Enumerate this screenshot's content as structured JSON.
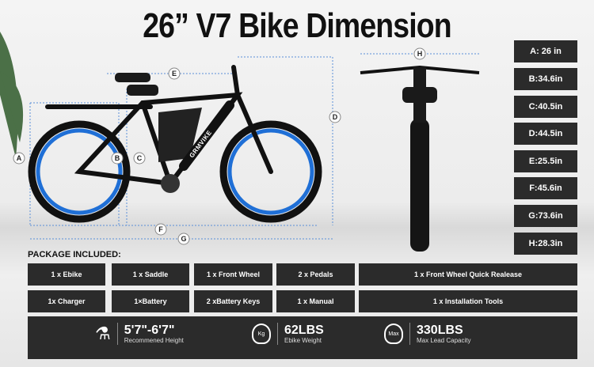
{
  "title": "26” V7 Bike Dimension",
  "labels": [
    "A",
    "B",
    "C",
    "D",
    "E",
    "F",
    "G",
    "H"
  ],
  "brand": "GRMVIKE",
  "specs": [
    "A: 26 in",
    "B:34.6in",
    "C:40.5in",
    "D:44.5in",
    "E:25.5in",
    "F:45.6in",
    "G:73.6in",
    "H:28.3in"
  ],
  "package": {
    "heading": "PACKAGE INCLUDED:",
    "row1": [
      "1 x Ebike",
      "1 x Saddle",
      "1 x Front Wheel",
      "2 x Pedals",
      "1 x Front Wheel Quick Realease"
    ],
    "row2": [
      "1x Charger",
      "1×Battery",
      "2 xBattery Keys",
      "1 x Manual",
      "1 x Installation Tools"
    ]
  },
  "features": [
    {
      "icon": "height-icon",
      "value": "5'7\"-6'7\"",
      "label": "Recommened Height"
    },
    {
      "icon": "kg-weight-icon",
      "value": "62LBS",
      "label": "Ebike Weight",
      "badge": "Kg"
    },
    {
      "icon": "max-weight-icon",
      "value": "330LBS",
      "label": "Max Lead Capacity",
      "badge": "Max"
    }
  ],
  "colors": {
    "accent": "#1f6fd6",
    "box": "#2b2b2b"
  }
}
